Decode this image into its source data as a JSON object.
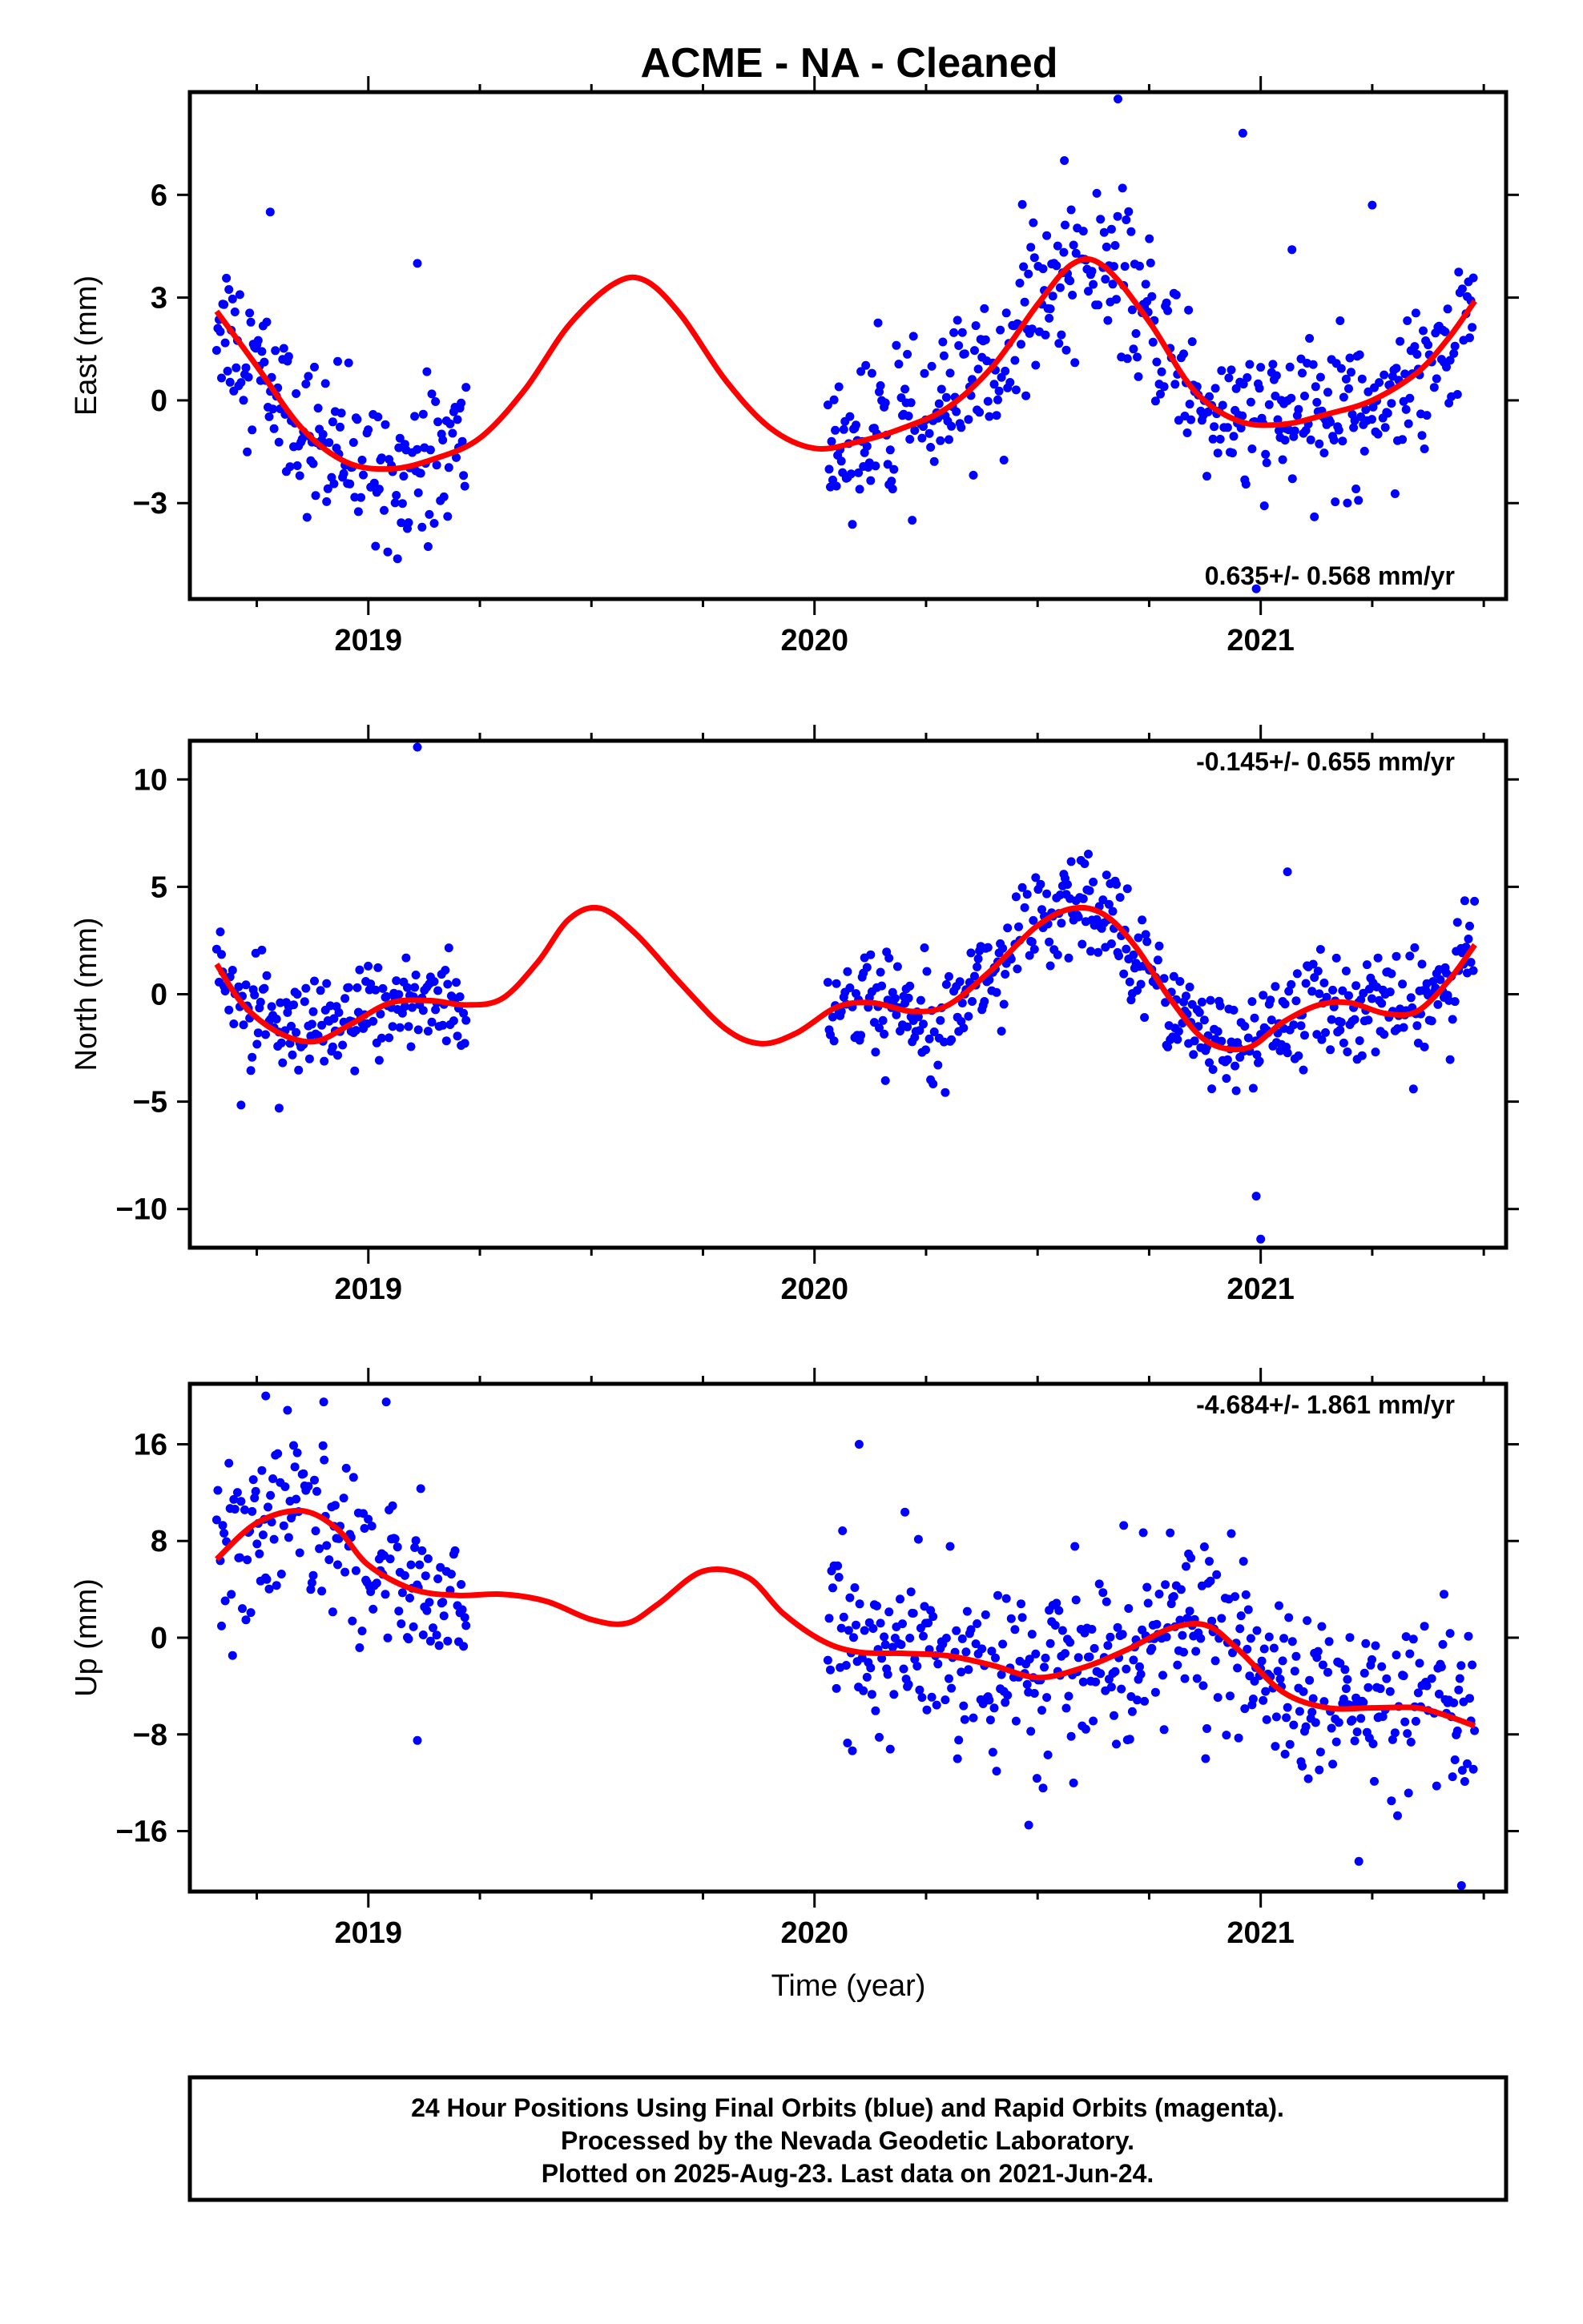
{
  "title": "ACME  - NA - Cleaned",
  "xlabel": "Time (year)",
  "footer": {
    "line1": "24 Hour Positions Using Final Orbits (blue) and Rapid Orbits (magenta).",
    "line2": "Processed by the Nevada Geodetic Laboratory.",
    "line3": "Plotted on 2025-Aug-23. Last data on 2021-Jun-24."
  },
  "colors": {
    "data": "#0000ff",
    "model": "#ff0000",
    "axes": "#000000"
  },
  "chart_data": [
    {
      "type": "scatter",
      "ylabel": "East (mm)",
      "rate_text": "0.635+/- 0.568 mm/yr",
      "xlim": [
        2018.6,
        2021.55
      ],
      "ylim": [
        -5.8,
        9.0
      ],
      "yticks": [
        -3,
        0,
        3,
        6
      ],
      "xticks": [
        2019,
        2020,
        2021
      ],
      "model": {
        "x": [
          2018.66,
          2018.75,
          2018.85,
          2018.95,
          2019.05,
          2019.15,
          2019.25,
          2019.35,
          2019.45,
          2019.55,
          2019.62,
          2019.7,
          2019.8,
          2019.9,
          2020.0,
          2020.1,
          2020.2,
          2020.3,
          2020.4,
          2020.5,
          2020.58,
          2020.65,
          2020.75,
          2020.85,
          2020.95,
          2021.05,
          2021.15,
          2021.25,
          2021.35,
          2021.42,
          2021.48
        ],
        "y": [
          2.6,
          1.0,
          -0.8,
          -1.8,
          -2.0,
          -1.7,
          -1.1,
          0.3,
          2.2,
          3.4,
          3.5,
          2.5,
          0.6,
          -0.8,
          -1.4,
          -1.2,
          -0.8,
          -0.2,
          1.0,
          2.8,
          4.0,
          3.9,
          2.3,
          0.3,
          -0.6,
          -0.7,
          -0.4,
          0.0,
          0.8,
          1.8,
          2.9
        ]
      },
      "series": [
        {
          "name": "",
          "segments": [
            {
              "x_start": 2018.66,
              "x_end": 2019.22,
              "noise": 1.1
            },
            {
              "x_start": 2020.03,
              "x_end": 2021.48,
              "noise": 1.1
            }
          ]
        }
      ],
      "outliers": {
        "x": [
          2018.78,
          2019.11,
          2020.56,
          2020.68,
          2020.96,
          2020.99,
          2021.07,
          2021.25
        ],
        "y": [
          5.5,
          4.0,
          7.0,
          8.8,
          7.8,
          -5.5,
          4.4,
          5.7
        ]
      }
    },
    {
      "type": "scatter",
      "ylabel": "North (mm)",
      "rate_text": "-0.145+/- 0.655 mm/yr",
      "xlim": [
        2018.6,
        2021.55
      ],
      "ylim": [
        -11.8,
        11.8
      ],
      "yticks": [
        -10,
        -5,
        0,
        5,
        10
      ],
      "xticks": [
        2019,
        2020,
        2021
      ],
      "model": {
        "x": [
          2018.66,
          2018.72,
          2018.8,
          2018.88,
          2018.96,
          2019.05,
          2019.14,
          2019.22,
          2019.3,
          2019.38,
          2019.45,
          2019.52,
          2019.6,
          2019.7,
          2019.8,
          2019.88,
          2019.96,
          2020.05,
          2020.13,
          2020.22,
          2020.3,
          2020.4,
          2020.5,
          2020.58,
          2020.65,
          2020.72,
          2020.8,
          2020.88,
          2020.97,
          2021.05,
          2021.13,
          2021.2,
          2021.28,
          2021.35,
          2021.42,
          2021.48
        ],
        "y": [
          1.4,
          -0.5,
          -1.8,
          -2.2,
          -1.4,
          -0.4,
          -0.3,
          -0.5,
          -0.2,
          1.5,
          3.5,
          4.0,
          2.8,
          0.5,
          -1.6,
          -2.3,
          -1.8,
          -0.6,
          -0.4,
          -0.8,
          -0.5,
          1.2,
          3.2,
          4.0,
          3.7,
          2.2,
          -0.3,
          -2.2,
          -2.5,
          -1.3,
          -0.5,
          -0.4,
          -0.9,
          -0.8,
          0.6,
          2.3
        ]
      },
      "series": [
        {
          "name": "",
          "segments": [
            {
              "x_start": 2018.66,
              "x_end": 2019.22,
              "noise": 1.2
            },
            {
              "x_start": 2020.03,
              "x_end": 2021.48,
              "noise": 1.2
            }
          ]
        }
      ],
      "outliers": {
        "x": [
          2019.11,
          2020.99,
          2021.0,
          2021.06,
          2018.8
        ],
        "y": [
          11.5,
          -9.4,
          -11.4,
          5.7,
          -5.3
        ]
      }
    },
    {
      "type": "scatter",
      "ylabel": "Up (mm)",
      "rate_text": "-4.684+/- 1.861 mm/yr",
      "xlim": [
        2018.6,
        2021.55
      ],
      "ylim": [
        -21.0,
        21.0
      ],
      "yticks": [
        -16,
        -8,
        0,
        8,
        16
      ],
      "xticks": [
        2019,
        2020,
        2021
      ],
      "model": {
        "x": [
          2018.66,
          2018.75,
          2018.85,
          2018.93,
          2019.0,
          2019.1,
          2019.2,
          2019.3,
          2019.4,
          2019.5,
          2019.58,
          2019.65,
          2019.75,
          2019.85,
          2019.93,
          2020.02,
          2020.1,
          2020.2,
          2020.3,
          2020.4,
          2020.5,
          2020.6,
          2020.7,
          2020.8,
          2020.88,
          2020.95,
          2021.05,
          2021.15,
          2021.25,
          2021.35,
          2021.42,
          2021.48
        ],
        "y": [
          6.5,
          9.5,
          10.5,
          9.0,
          6.0,
          4.0,
          3.5,
          3.6,
          3.0,
          1.5,
          1.2,
          2.8,
          5.5,
          5.0,
          2.0,
          -0.3,
          -1.2,
          -1.3,
          -1.5,
          -2.3,
          -3.3,
          -2.5,
          -1.0,
          0.8,
          1.0,
          -1.0,
          -4.5,
          -5.8,
          -5.8,
          -5.8,
          -6.5,
          -7.3
        ]
      },
      "series": [
        {
          "name": "",
          "segments": [
            {
              "x_start": 2018.66,
              "x_end": 2019.22,
              "noise": 3.5
            },
            {
              "x_start": 2020.03,
              "x_end": 2021.48,
              "noise": 3.5
            }
          ]
        }
      ],
      "outliers": {
        "x": [
          2018.77,
          2018.9,
          2019.04,
          2020.1,
          2019.11,
          2020.48,
          2021.22,
          2021.45
        ],
        "y": [
          20.0,
          19.5,
          19.5,
          16.0,
          -8.5,
          -15.5,
          -18.5,
          -20.5
        ]
      }
    }
  ]
}
